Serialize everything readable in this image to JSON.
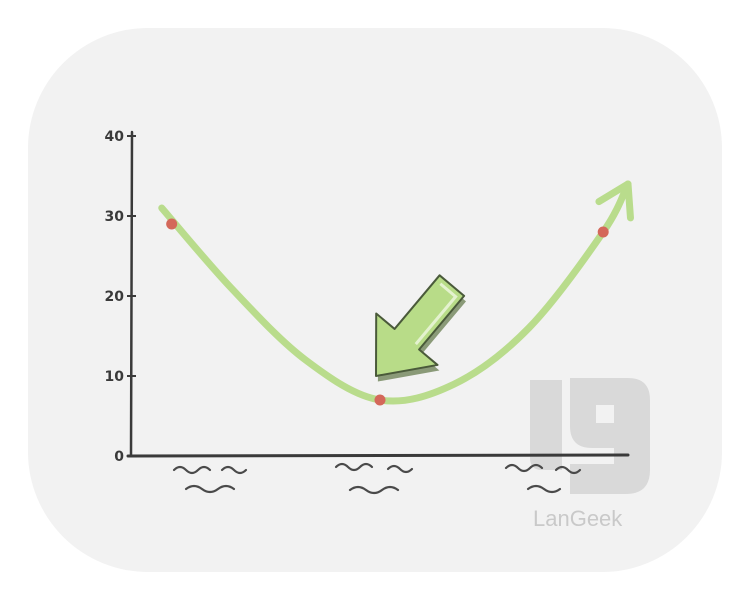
{
  "chart_data": {
    "type": "line",
    "title": "",
    "xlabel": "",
    "ylabel": "",
    "ylim": [
      0,
      40
    ],
    "yticks": [
      "0",
      "10",
      "20",
      "30",
      "40"
    ],
    "grid": false,
    "legend": "none",
    "x_categories_unlabeled": 3,
    "highlighted_points": [
      {
        "x": 0.08,
        "y": 29
      },
      {
        "x": 0.5,
        "y": 7
      },
      {
        "x": 0.95,
        "y": 28
      }
    ],
    "curve": {
      "shape": "U-shaped (minimum near the middle, rising at both ends, ends in an arrowhead)",
      "x": [
        0.06,
        0.2,
        0.35,
        0.5,
        0.65,
        0.8,
        0.95,
        1.0
      ],
      "y": [
        31,
        21,
        12,
        7,
        9,
        16,
        28,
        34
      ]
    },
    "annotation": {
      "type": "arrow",
      "points_to": {
        "x": 0.5,
        "y": 7
      }
    },
    "colors": {
      "curve": "#b9dc8c",
      "points": "#d4685a",
      "arrow_fill": "#b8dc88",
      "arrow_stroke": "#4a5a3a",
      "axis": "#3a3a3a"
    }
  },
  "watermark": {
    "logo_text": "LanGeek"
  },
  "panel": {
    "background": "#f2f2f2"
  }
}
